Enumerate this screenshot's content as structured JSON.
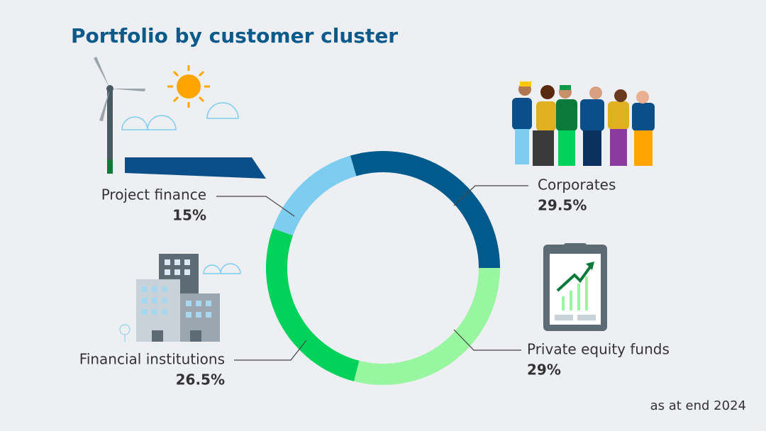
{
  "chart_data": {
    "type": "donut",
    "title": "Portfolio by customer cluster",
    "note": "as at end 2024",
    "categories": [
      "Corporates",
      "Private equity funds",
      "Financial institutions",
      "Project finance"
    ],
    "values": [
      29.5,
      29,
      26.5,
      15
    ],
    "value_labels": [
      "29.5%",
      "29%",
      "26.5%",
      "15%"
    ],
    "colors": [
      "#005a8c",
      "#98f5a0",
      "#00d25a",
      "#7dcdf0"
    ]
  }
}
